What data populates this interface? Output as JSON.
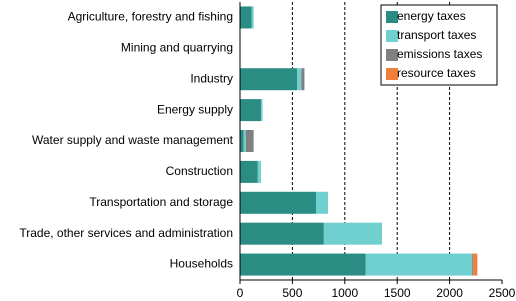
{
  "chart_data": {
    "type": "stacked-barh",
    "categories": [
      "Agriculture, forestry and fishing",
      "Mining and quarrying",
      "Industry",
      "Energy supply",
      "Water supply and waste management",
      "Construction",
      "Transportation and storage",
      "Trade, other services and administration",
      "Households"
    ],
    "series": [
      {
        "name": "energy taxes",
        "color": "#2a8c82",
        "values": [
          110,
          0,
          545,
          200,
          35,
          170,
          725,
          800,
          1200
        ]
      },
      {
        "name": "transport taxes",
        "color": "#70cfcf",
        "values": [
          20,
          0,
          40,
          15,
          20,
          30,
          115,
          555,
          1015
        ]
      },
      {
        "name": "emissions taxes",
        "color": "#808080",
        "values": [
          0,
          0,
          30,
          0,
          75,
          0,
          0,
          0,
          10
        ]
      },
      {
        "name": "resource taxes",
        "color": "#f07f3c",
        "values": [
          0,
          0,
          0,
          0,
          0,
          0,
          0,
          0,
          40
        ]
      }
    ],
    "xlim": [
      0,
      2500
    ],
    "xticks": [
      0,
      500,
      1000,
      1500,
      2000,
      2500
    ],
    "grid": true
  }
}
